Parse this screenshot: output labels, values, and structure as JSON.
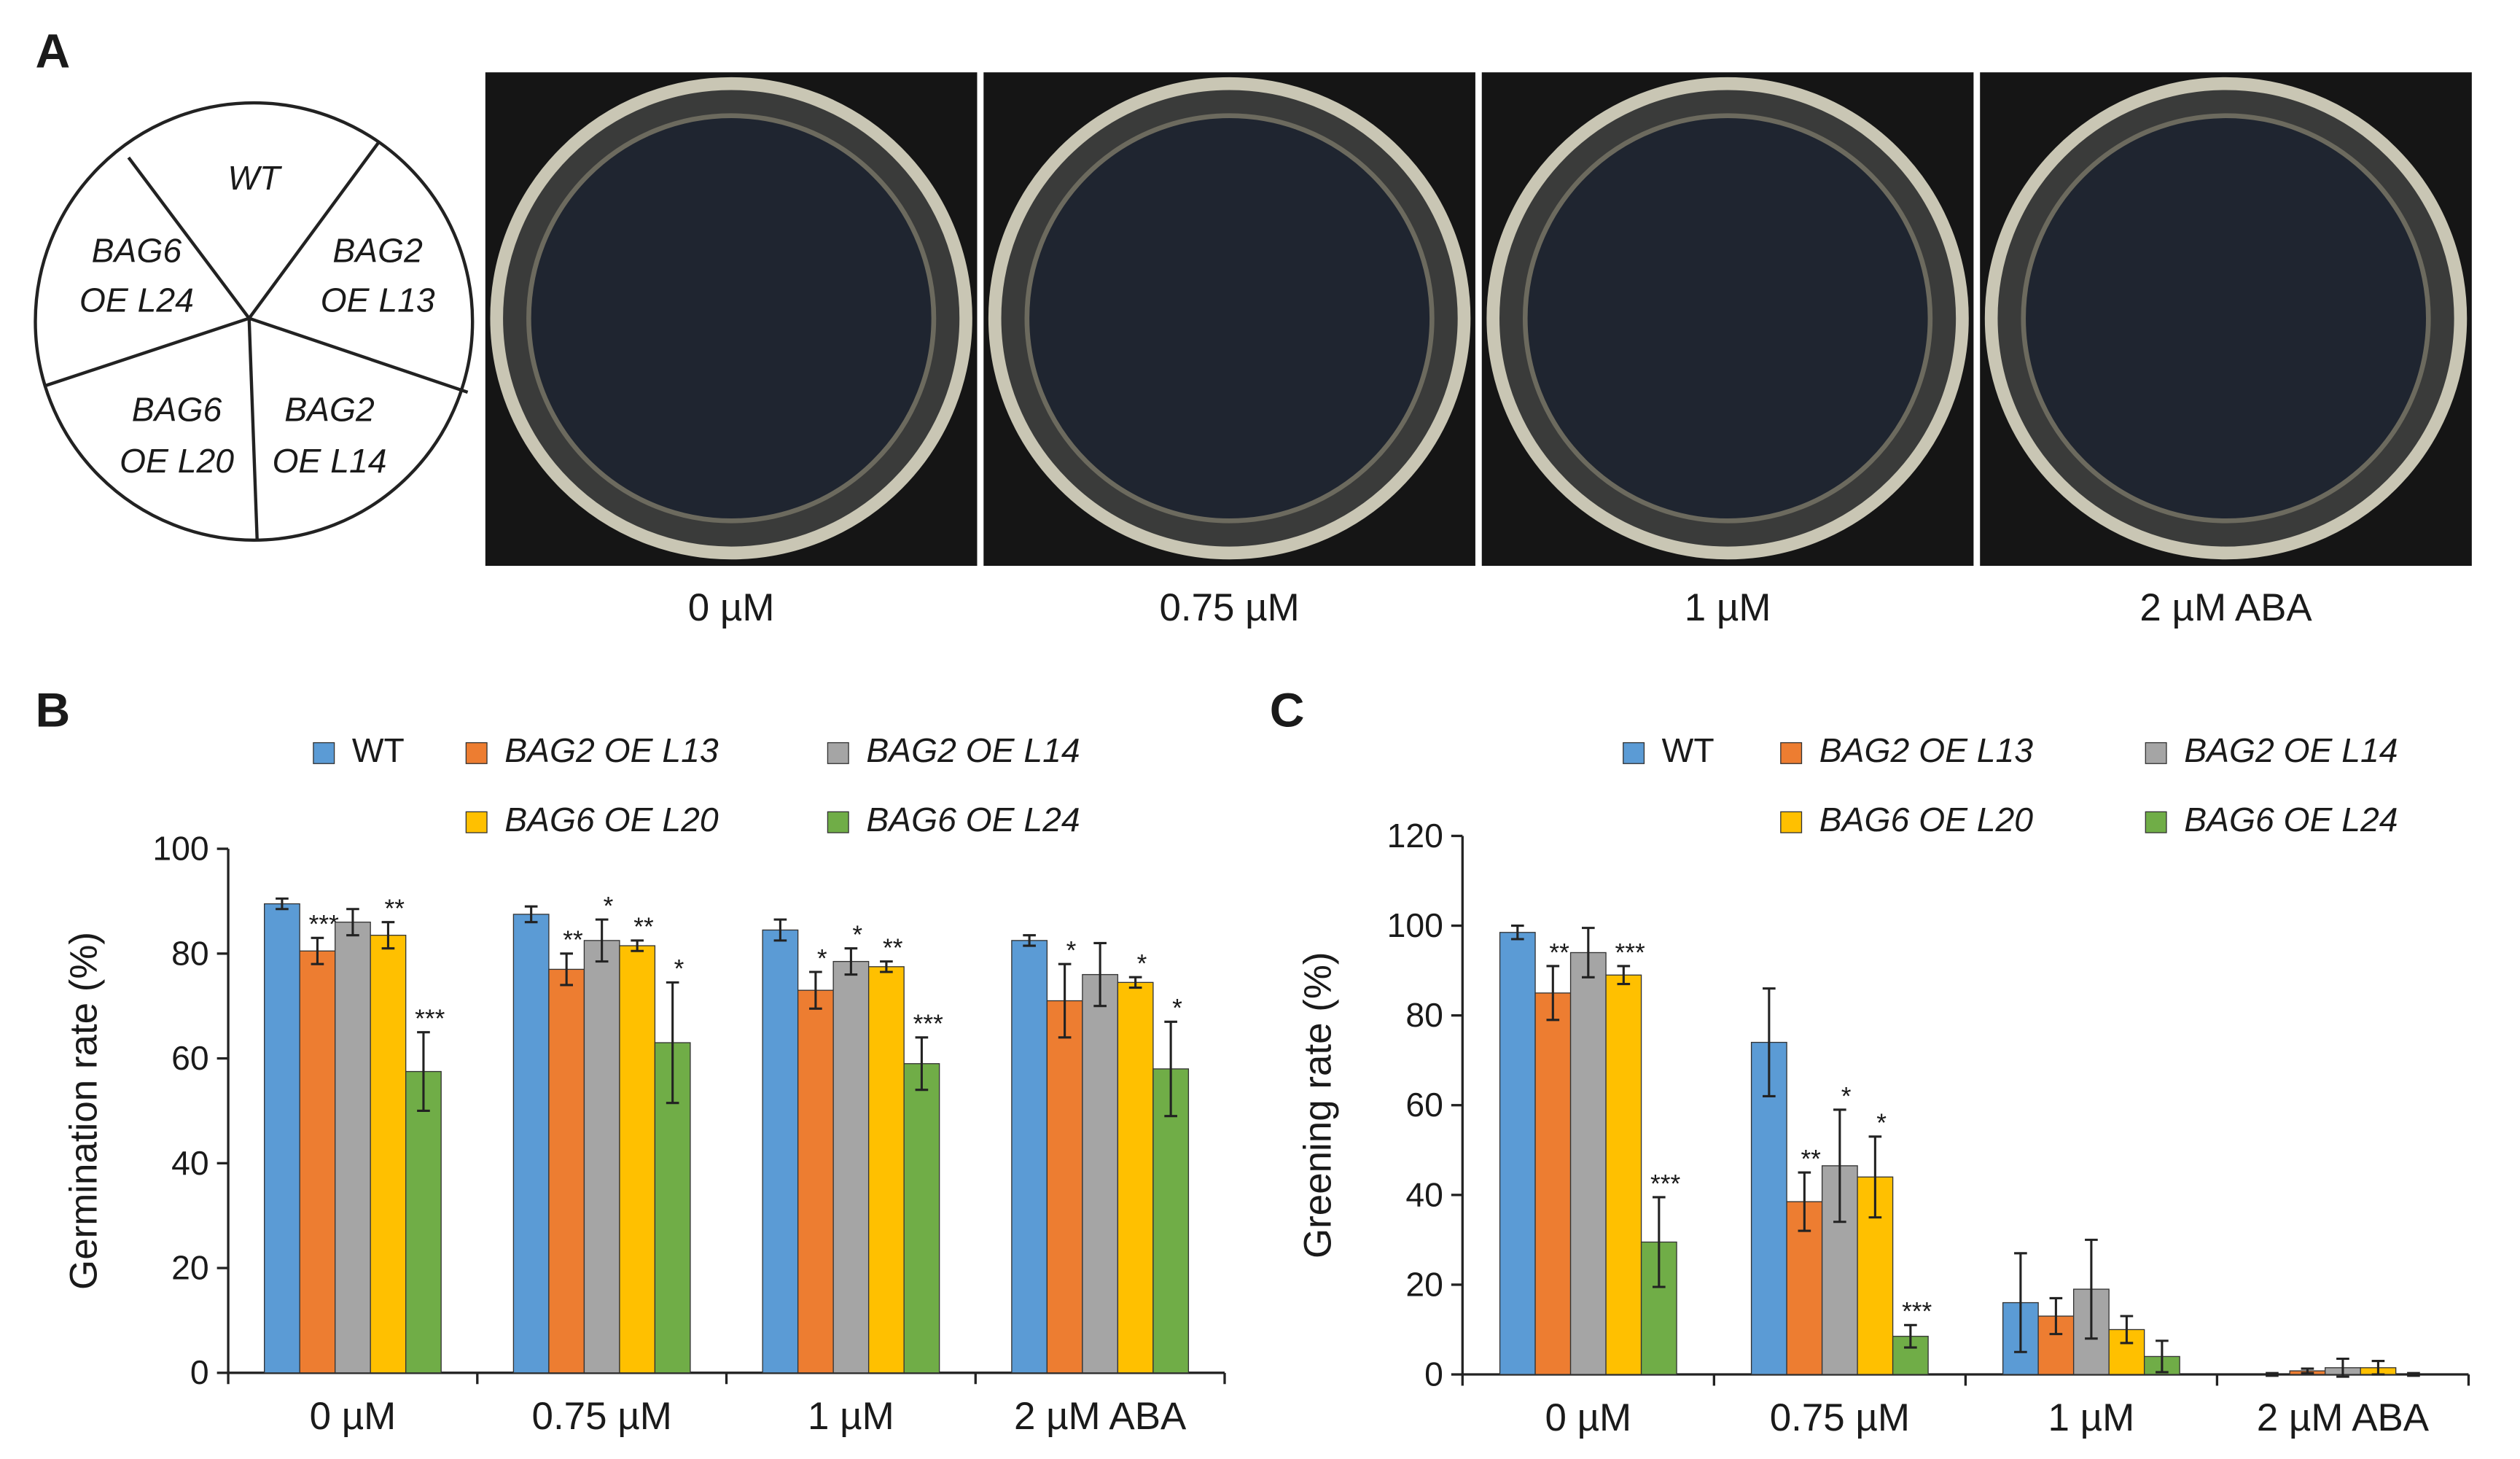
{
  "panel_a": {
    "label": "A",
    "sectors": [
      [
        "WT"
      ],
      [
        "BAG6",
        "OE L24"
      ],
      [
        "BAG2",
        "OE L13"
      ],
      [
        "BAG6",
        "OE L20"
      ],
      [
        "BAG2",
        "OE L14"
      ]
    ],
    "concentrations": [
      "0 µM",
      "0.75 µM",
      "1 µM",
      "2 µM ABA"
    ]
  },
  "chart_data": [
    {
      "type": "bar",
      "label": "B",
      "y_label": "Germination rate (%)",
      "categories": [
        "0 µM",
        "0.75 µM",
        "1 µM",
        "2 µM ABA"
      ],
      "ylim": [
        0,
        100
      ],
      "yticks": [
        0,
        20,
        40,
        60,
        80,
        100
      ],
      "series": [
        {
          "name": "WT",
          "color": "#5b9bd5",
          "values": [
            89.5,
            87.5,
            84.5,
            82.5
          ],
          "errors": [
            1,
            1.5,
            2,
            1
          ]
        },
        {
          "name": "BAG2 OE L13",
          "color": "#ed7d31",
          "values": [
            80.5,
            77,
            73,
            71
          ],
          "errors": [
            2.5,
            3,
            3.5,
            7
          ],
          "annotations": [
            "***",
            "**",
            "*",
            "*"
          ]
        },
        {
          "name": "BAG2 OE L14",
          "color": "#a5a5a5",
          "values": [
            86,
            82.5,
            78.5,
            76
          ],
          "errors": [
            2.5,
            4,
            2.5,
            6
          ],
          "annotations": [
            null,
            "*",
            "*",
            null
          ]
        },
        {
          "name": "BAG6 OE L20",
          "color": "#ffc000",
          "values": [
            83.5,
            81.5,
            77.5,
            74.5
          ],
          "errors": [
            2.5,
            1,
            1,
            1
          ],
          "annotations": [
            "**",
            "**",
            "**",
            "*"
          ]
        },
        {
          "name": "BAG6 OE L24",
          "color": "#70ad47",
          "values": [
            57.5,
            63,
            59,
            58
          ],
          "errors": [
            7.5,
            11.5,
            5,
            9
          ],
          "annotations": [
            "***",
            "*",
            "***",
            "*"
          ]
        }
      ]
    },
    {
      "type": "bar",
      "label": "C",
      "y_label": "Greening rate (%)",
      "categories": [
        "0 µM",
        "0.75 µM",
        "1 µM",
        "2 µM ABA"
      ],
      "ylim": [
        0,
        120
      ],
      "yticks": [
        0,
        20,
        40,
        60,
        80,
        100,
        120
      ],
      "series": [
        {
          "name": "WT",
          "color": "#5b9bd5",
          "values": [
            98.5,
            74,
            16,
            0
          ],
          "errors": [
            1.5,
            12,
            11,
            0.3
          ]
        },
        {
          "name": "BAG2 OE L13",
          "color": "#ed7d31",
          "values": [
            85,
            38.5,
            13,
            0.8
          ],
          "errors": [
            6,
            6.5,
            4,
            0.5
          ],
          "annotations": [
            "**",
            "**",
            null,
            null
          ]
        },
        {
          "name": "BAG2 OE L14",
          "color": "#a5a5a5",
          "values": [
            94,
            46.5,
            19,
            1.5
          ],
          "errors": [
            5.5,
            12.5,
            11,
            2
          ],
          "annotations": [
            null,
            "*",
            null,
            null
          ]
        },
        {
          "name": "BAG6 OE L20",
          "color": "#ffc000",
          "values": [
            89,
            44,
            10,
            1.5
          ],
          "errors": [
            2,
            9,
            3,
            1.5
          ],
          "annotations": [
            "***",
            "*",
            null,
            null
          ]
        },
        {
          "name": "BAG6 OE L24",
          "color": "#70ad47",
          "values": [
            29.5,
            8.5,
            4,
            0
          ],
          "errors": [
            10,
            2.5,
            3.5,
            0.3
          ],
          "annotations": [
            "***",
            "***",
            null,
            null
          ]
        }
      ]
    }
  ]
}
